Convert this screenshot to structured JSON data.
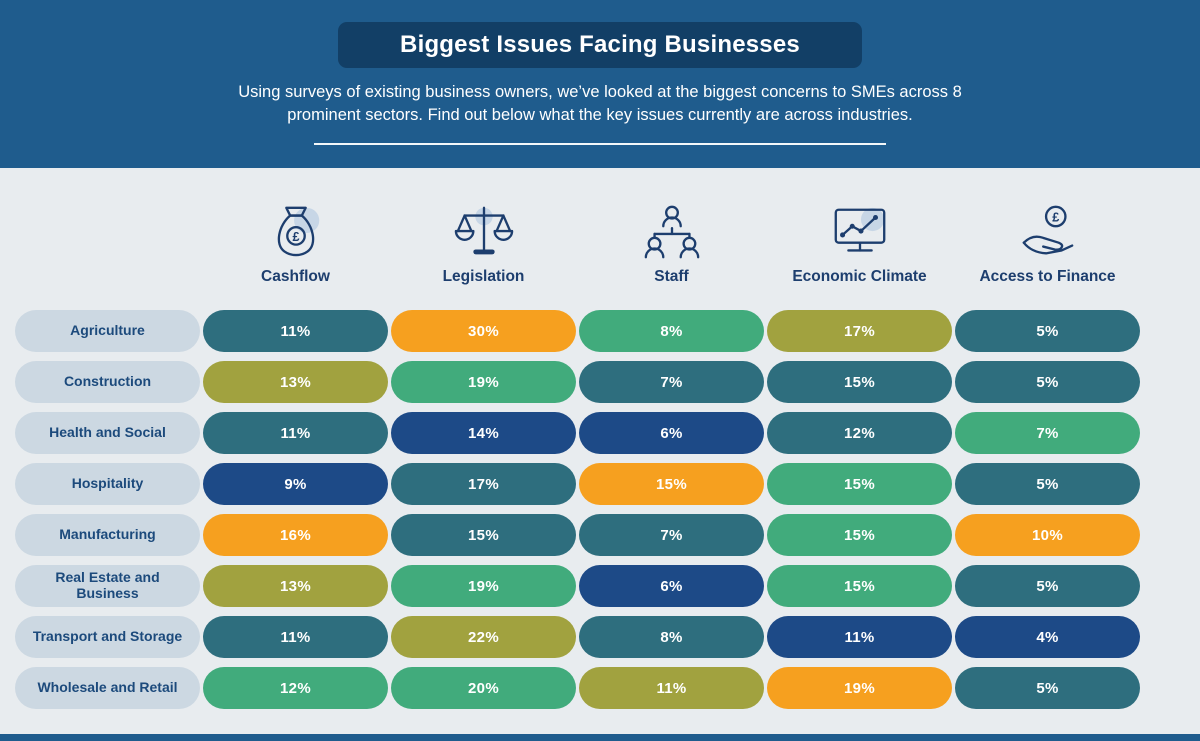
{
  "header": {
    "title": "Biggest Issues Facing Businesses",
    "subtitle_line1": "Using surveys of existing business owners, we’ve looked at the biggest concerns to SMEs across 8",
    "subtitle_line2": "prominent sectors. Find out below what the key issues currently are across industries."
  },
  "columns": [
    {
      "label": "Cashflow",
      "icon": "money-bag-icon"
    },
    {
      "label": "Legislation",
      "icon": "scales-icon"
    },
    {
      "label": "Staff",
      "icon": "staff-org-icon"
    },
    {
      "label": "Economic Climate",
      "icon": "monitor-chart-icon"
    },
    {
      "label": "Access to Finance",
      "icon": "hand-coin-icon"
    }
  ],
  "colors": {
    "teal": "#2e6e7e",
    "orange": "#f6a01f",
    "green": "#41ab7c",
    "olive": "#a1a23f",
    "navy": "#1d4a87",
    "header_band": "#1f5c8d",
    "title_box": "#123f66",
    "page_bg": "#e8ecef",
    "row_label_bg": "#ccd8e2",
    "row_label_text": "#1c4a7c"
  },
  "rows": [
    {
      "label": "Agriculture",
      "cells": [
        {
          "value": "11%",
          "color": "teal"
        },
        {
          "value": "30%",
          "color": "orange"
        },
        {
          "value": "8%",
          "color": "green"
        },
        {
          "value": "17%",
          "color": "olive"
        },
        {
          "value": "5%",
          "color": "teal"
        }
      ]
    },
    {
      "label": "Construction",
      "cells": [
        {
          "value": "13%",
          "color": "olive"
        },
        {
          "value": "19%",
          "color": "green"
        },
        {
          "value": "7%",
          "color": "teal"
        },
        {
          "value": "15%",
          "color": "teal"
        },
        {
          "value": "5%",
          "color": "teal"
        }
      ]
    },
    {
      "label": "Health and Social",
      "cells": [
        {
          "value": "11%",
          "color": "teal"
        },
        {
          "value": "14%",
          "color": "navy"
        },
        {
          "value": "6%",
          "color": "navy"
        },
        {
          "value": "12%",
          "color": "teal"
        },
        {
          "value": "7%",
          "color": "green"
        }
      ]
    },
    {
      "label": "Hospitality",
      "cells": [
        {
          "value": "9%",
          "color": "navy"
        },
        {
          "value": "17%",
          "color": "teal"
        },
        {
          "value": "15%",
          "color": "orange"
        },
        {
          "value": "15%",
          "color": "green"
        },
        {
          "value": "5%",
          "color": "teal"
        }
      ]
    },
    {
      "label": "Manufacturing",
      "cells": [
        {
          "value": "16%",
          "color": "orange"
        },
        {
          "value": "15%",
          "color": "teal"
        },
        {
          "value": "7%",
          "color": "teal"
        },
        {
          "value": "15%",
          "color": "green"
        },
        {
          "value": "10%",
          "color": "orange"
        }
      ]
    },
    {
      "label": "Real Estate and Business",
      "cells": [
        {
          "value": "13%",
          "color": "olive"
        },
        {
          "value": "19%",
          "color": "green"
        },
        {
          "value": "6%",
          "color": "navy"
        },
        {
          "value": "15%",
          "color": "green"
        },
        {
          "value": "5%",
          "color": "teal"
        }
      ]
    },
    {
      "label": "Transport and Storage",
      "cells": [
        {
          "value": "11%",
          "color": "teal"
        },
        {
          "value": "22%",
          "color": "olive"
        },
        {
          "value": "8%",
          "color": "teal"
        },
        {
          "value": "11%",
          "color": "navy"
        },
        {
          "value": "4%",
          "color": "navy"
        }
      ]
    },
    {
      "label": "Wholesale and Retail",
      "cells": [
        {
          "value": "12%",
          "color": "green"
        },
        {
          "value": "20%",
          "color": "green"
        },
        {
          "value": "11%",
          "color": "olive"
        },
        {
          "value": "19%",
          "color": "orange"
        },
        {
          "value": "5%",
          "color": "teal"
        }
      ]
    }
  ],
  "chart_data": {
    "type": "heatmap",
    "title": "Biggest Issues Facing Businesses",
    "rows": [
      "Agriculture",
      "Construction",
      "Health and Social",
      "Hospitality",
      "Manufacturing",
      "Real Estate and Business",
      "Transport and Storage",
      "Wholesale and Retail"
    ],
    "columns": [
      "Cashflow",
      "Legislation",
      "Staff",
      "Economic Climate",
      "Access to Finance"
    ],
    "values": [
      [
        11,
        30,
        8,
        17,
        5
      ],
      [
        13,
        19,
        7,
        15,
        5
      ],
      [
        11,
        14,
        6,
        12,
        7
      ],
      [
        9,
        17,
        15,
        15,
        5
      ],
      [
        16,
        15,
        7,
        15,
        10
      ],
      [
        13,
        19,
        6,
        15,
        5
      ],
      [
        11,
        22,
        8,
        11,
        4
      ],
      [
        12,
        20,
        11,
        19,
        5
      ]
    ],
    "unit": "%"
  }
}
